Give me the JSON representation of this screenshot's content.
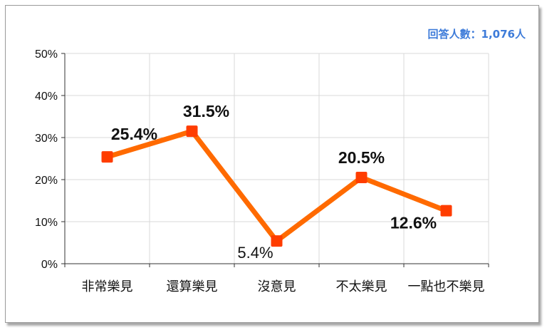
{
  "note": "回答人數：1,076人",
  "chart_data": {
    "type": "line",
    "categories": [
      "非常樂見",
      "還算樂見",
      "沒意見",
      "不太樂見",
      "一點也不樂見"
    ],
    "series": [
      {
        "values": [
          25.4,
          31.5,
          5.4,
          20.5,
          12.6
        ]
      }
    ],
    "data_labels": [
      "25.4%",
      "31.5%",
      "5.4%",
      "20.5%",
      "12.6%"
    ],
    "y_ticks": [
      "0%",
      "10%",
      "20%",
      "30%",
      "40%",
      "50%"
    ],
    "ylim": [
      0,
      50
    ],
    "grid": true,
    "title": "",
    "xlabel": "",
    "ylabel": "",
    "colors": {
      "line": "#ff6a00",
      "marker": "#ff3d00",
      "grid": "#d9d9d9",
      "note": "#3d7bd9"
    }
  }
}
